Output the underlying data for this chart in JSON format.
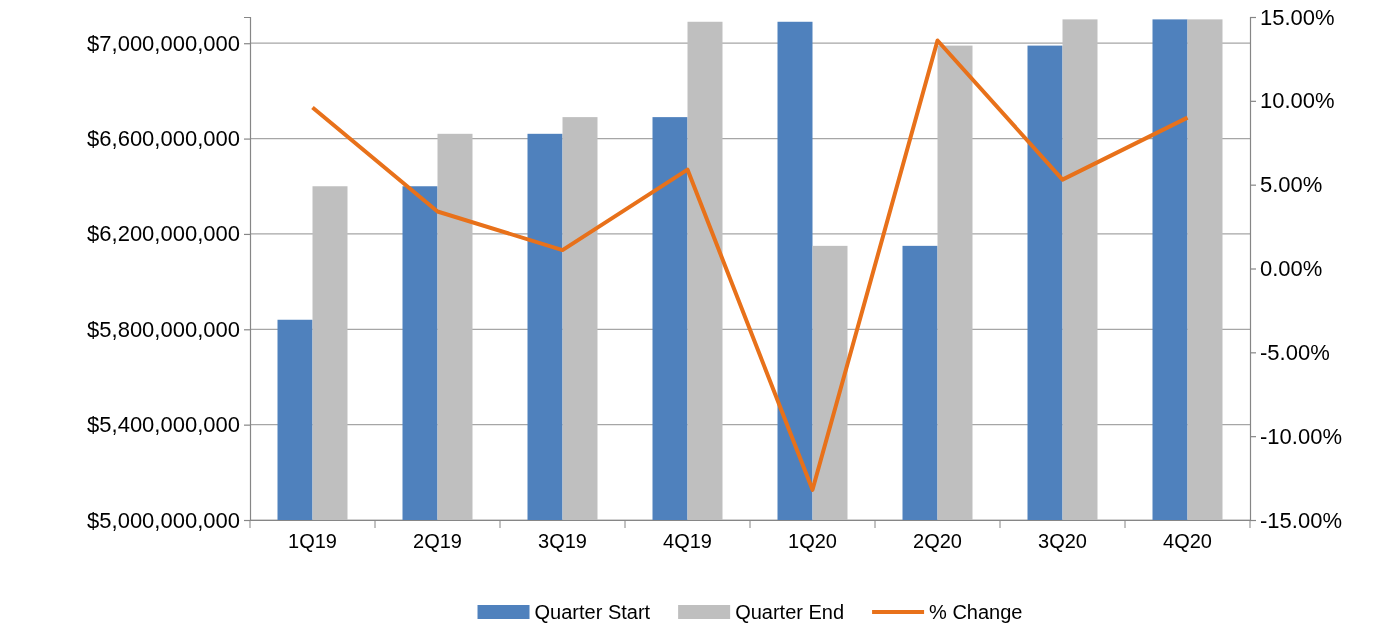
{
  "chart_data": {
    "type": "bar",
    "categories": [
      "1Q19",
      "2Q19",
      "3Q19",
      "4Q19",
      "1Q20",
      "2Q20",
      "3Q20",
      "4Q20"
    ],
    "series": [
      {
        "name": "Quarter Start",
        "color": "#4f81bd",
        "values": [
          5840000000,
          6400000000,
          6620000000,
          6690000000,
          7090000000,
          6150000000,
          6990000000,
          7100000000
        ]
      },
      {
        "name": "Quarter End",
        "color": "#bfbfbf",
        "values": [
          6400000000,
          6620000000,
          6690000000,
          7090000000,
          6150000000,
          6990000000,
          7100000000,
          7100000000
        ]
      },
      {
        "name": "% Change",
        "type": "line",
        "axis": "y2",
        "color": "#e8711a",
        "values": [
          9.6,
          3.4,
          1.1,
          5.9,
          -13.2,
          13.6,
          5.3,
          9.0
        ]
      }
    ],
    "ylim": [
      5000000000,
      7110000000
    ],
    "yticks": [
      {
        "value": 5000000000,
        "label": "$5,000,000,000"
      },
      {
        "value": 5400000000,
        "label": "$5,400,000,000"
      },
      {
        "value": 5800000000,
        "label": "$5,800,000,000"
      },
      {
        "value": 6200000000,
        "label": "$6,200,000,000"
      },
      {
        "value": 6600000000,
        "label": "$6,600,000,000"
      },
      {
        "value": 7000000000,
        "label": "$7,000,000,000"
      }
    ],
    "y2lim": [
      -15,
      15
    ],
    "y2ticks": [
      {
        "value": -15,
        "label": "-15.00%"
      },
      {
        "value": -10,
        "label": "-10.00%"
      },
      {
        "value": -5,
        "label": "-5.00%"
      },
      {
        "value": 0,
        "label": "0.00%"
      },
      {
        "value": 5,
        "label": "5.00%"
      },
      {
        "value": 10,
        "label": "10.00%"
      },
      {
        "value": 15,
        "label": "15.00%"
      }
    ],
    "grid": "y",
    "legend": "bottom",
    "marker": "none",
    "line_style": "solid"
  }
}
